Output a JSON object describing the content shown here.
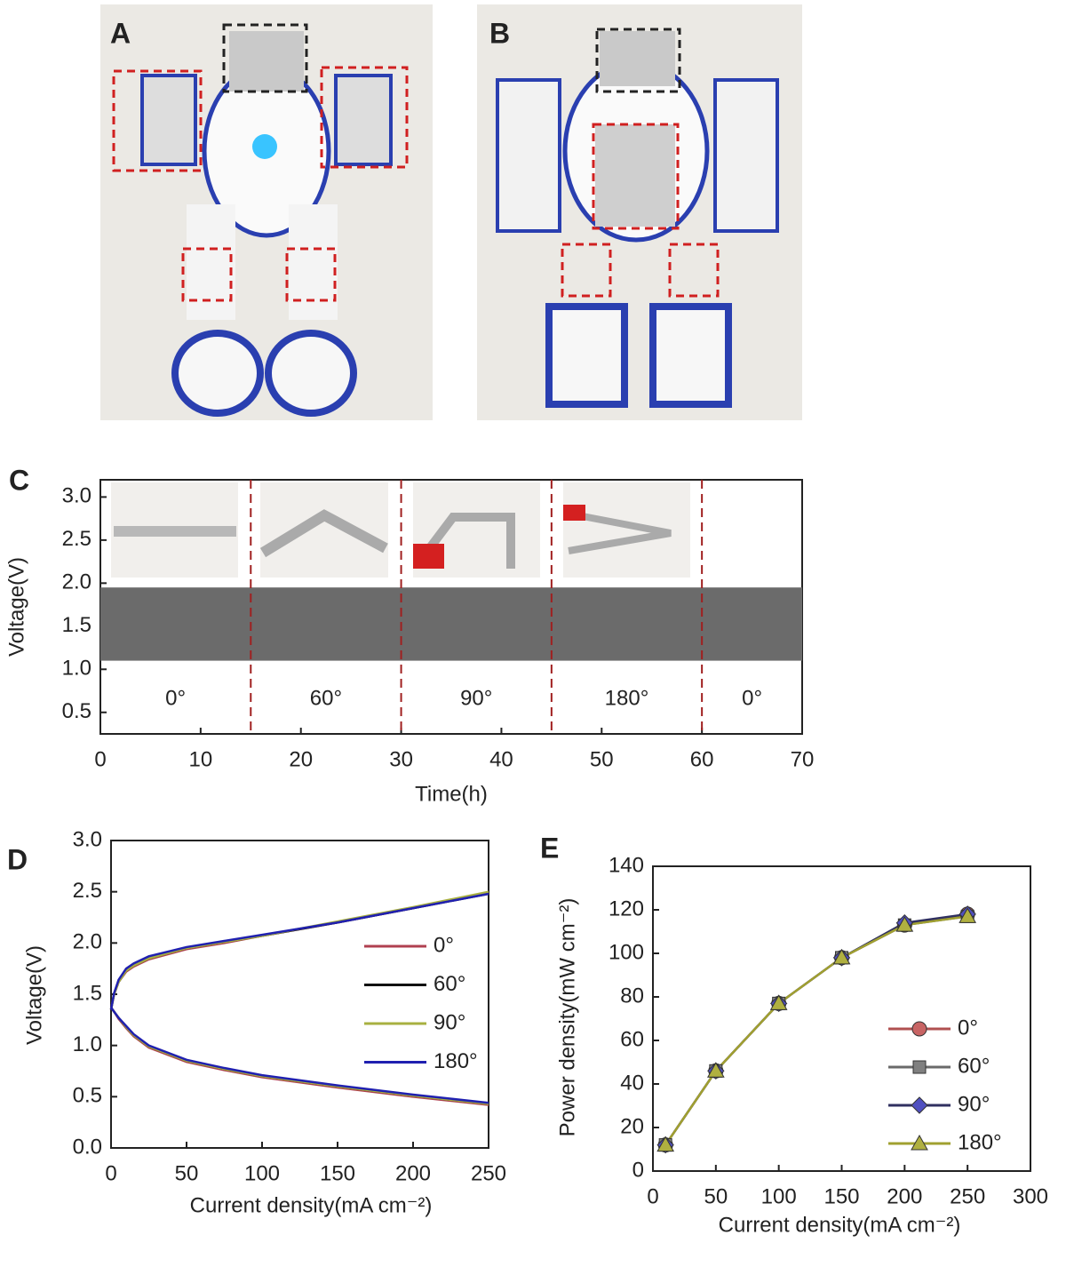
{
  "panels": [
    {
      "letter": "A"
    },
    {
      "letter": "B"
    }
  ],
  "chart_data": [
    {
      "type": "band",
      "letter": "C",
      "xlabel": "Time(h)",
      "ylabel": "Voltage(V)",
      "x": [
        0,
        70
      ],
      "upper": [
        1.95,
        1.95
      ],
      "lower": [
        1.1,
        1.1
      ],
      "color": "#6b6b6b",
      "dividers": [
        15,
        30,
        45,
        60
      ],
      "segment_labels": [
        "0°",
        "60°",
        "90°",
        "180°",
        "0°"
      ],
      "xlim": [
        0,
        70
      ],
      "xticks": [
        0,
        10,
        20,
        30,
        40,
        50,
        60,
        70
      ],
      "ylim": [
        0.25,
        3.2
      ],
      "yticks": [
        0.5,
        {
          "value": 1,
          "label": "1.0"
        },
        1.5,
        {
          "value": 2,
          "label": "2.0"
        },
        2.5,
        {
          "value": 3,
          "label": "3.0"
        }
      ]
    },
    {
      "type": "line",
      "letter": "D",
      "xlabel": "Current density(mA cm⁻²)",
      "ylabel": "Voltage(V)",
      "x": [
        0,
        2,
        5,
        10,
        15,
        25,
        50,
        75,
        100,
        150,
        200,
        250
      ],
      "series": [
        {
          "name": "0°",
          "color": "#b04050",
          "charge": [
            1.35,
            1.5,
            1.62,
            1.72,
            1.77,
            1.84,
            1.94,
            2.0,
            2.07,
            2.2,
            2.34,
            2.49
          ],
          "discharge": [
            1.37,
            1.33,
            1.26,
            1.17,
            1.09,
            0.98,
            0.84,
            0.76,
            0.69,
            0.59,
            0.5,
            0.42
          ]
        },
        {
          "name": "60°",
          "color": "#111111",
          "charge": [
            1.35,
            1.5,
            1.62,
            1.73,
            1.78,
            1.85,
            1.95,
            2.01,
            2.07,
            2.2,
            2.34,
            2.48
          ],
          "discharge": [
            1.37,
            1.33,
            1.27,
            1.18,
            1.1,
            0.99,
            0.85,
            0.77,
            0.7,
            0.6,
            0.51,
            0.43
          ]
        },
        {
          "name": "90°",
          "color": "#a8b040",
          "charge": [
            1.35,
            1.5,
            1.62,
            1.73,
            1.78,
            1.85,
            1.95,
            2.01,
            2.07,
            2.21,
            2.35,
            2.5
          ],
          "discharge": [
            1.37,
            1.33,
            1.27,
            1.18,
            1.1,
            0.99,
            0.85,
            0.77,
            0.7,
            0.6,
            0.51,
            0.43
          ]
        },
        {
          "name": "180°",
          "color": "#2020b0",
          "charge": [
            1.35,
            1.51,
            1.64,
            1.75,
            1.8,
            1.87,
            1.96,
            2.02,
            2.08,
            2.2,
            2.34,
            2.48
          ],
          "discharge": [
            1.37,
            1.33,
            1.27,
            1.19,
            1.11,
            1.0,
            0.86,
            0.78,
            0.71,
            0.61,
            0.52,
            0.44
          ]
        }
      ],
      "xlim": [
        0,
        250
      ],
      "xticks": [
        0,
        50,
        100,
        150,
        200,
        250
      ],
      "ylim": [
        0,
        3
      ],
      "yticks": [
        {
          "value": 0,
          "label": "0.0"
        },
        0.5,
        {
          "value": 1,
          "label": "1.0"
        },
        1.5,
        {
          "value": 2,
          "label": "2.0"
        },
        2.5,
        {
          "value": 3,
          "label": "3.0"
        }
      ]
    },
    {
      "type": "line_markers",
      "letter": "E",
      "xlabel": "Current density(mA cm⁻²)",
      "ylabel": "Power density(mW cm⁻²)",
      "x": [
        10,
        50,
        100,
        150,
        200,
        250
      ],
      "series": [
        {
          "name": "0°",
          "color": "#b05050",
          "marker_color": "#c86464",
          "marker": "circle",
          "values": [
            12,
            46,
            77,
            98,
            113,
            118
          ]
        },
        {
          "name": "60°",
          "color": "#6a6a6a",
          "marker_color": "#808080",
          "marker": "square",
          "values": [
            12,
            46,
            77,
            98,
            113,
            117
          ]
        },
        {
          "name": "90°",
          "color": "#303060",
          "marker_color": "#5050c0",
          "marker": "diamond",
          "values": [
            12,
            46,
            77,
            98,
            114,
            118
          ]
        },
        {
          "name": "180°",
          "color": "#a0a030",
          "marker_color": "#b0b040",
          "marker": "triangle",
          "values": [
            12,
            46,
            77,
            98,
            113,
            117
          ]
        }
      ],
      "xlim": [
        0,
        300
      ],
      "xticks": [
        0,
        50,
        100,
        150,
        200,
        250,
        300
      ],
      "ylim": [
        0,
        140
      ],
      "yticks": [
        0,
        20,
        40,
        60,
        80,
        100,
        120,
        140
      ]
    }
  ]
}
